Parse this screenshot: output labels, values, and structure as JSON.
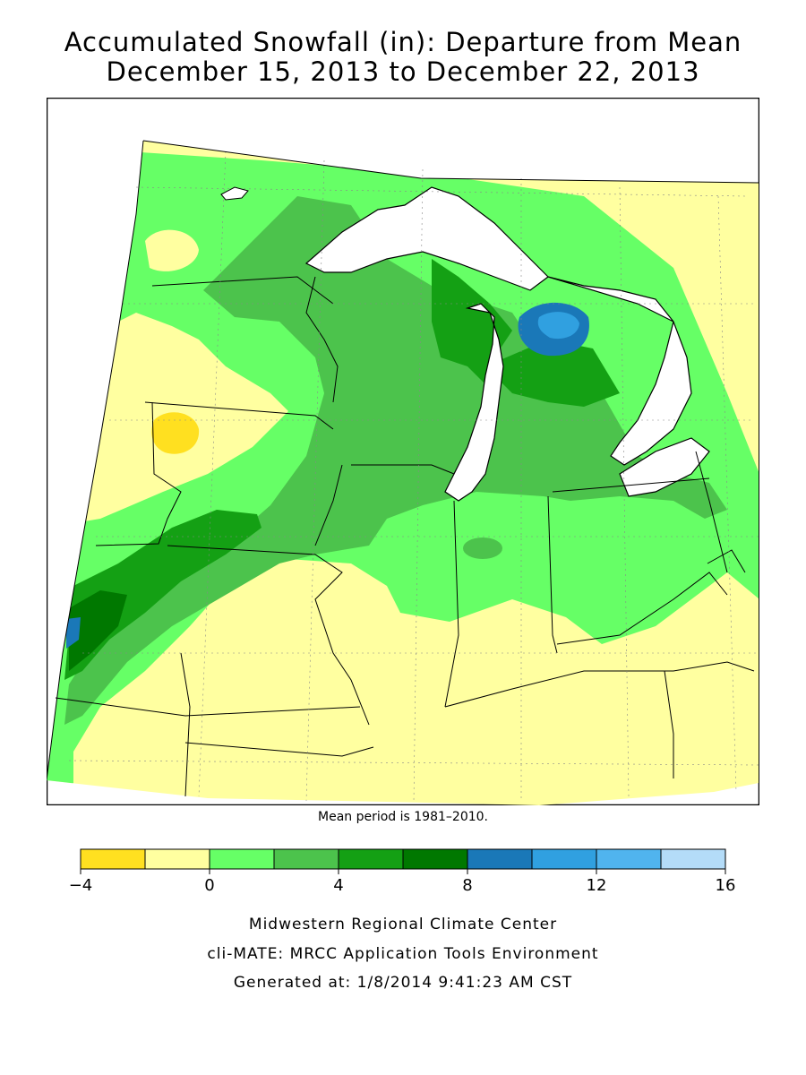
{
  "title": {
    "line1": "Accumulated Snowfall (in): Departure from Mean",
    "line2": "December 15, 2013 to December 22, 2013"
  },
  "mean_note": "Mean period is 1981–2010.",
  "legend": {
    "ticks": [
      "−4",
      "0",
      "4",
      "8",
      "12",
      "16"
    ],
    "bins": [
      {
        "color": "#ffe020"
      },
      {
        "color": "#ffffa0"
      },
      {
        "color": "#66ff66"
      },
      {
        "color": "#4cc34c"
      },
      {
        "color": "#14a014"
      },
      {
        "color": "#007800"
      },
      {
        "color": "#1a78b8"
      },
      {
        "color": "#30a0e0"
      },
      {
        "color": "#50b4ee"
      },
      {
        "color": "#b4dcf8"
      }
    ]
  },
  "credits": {
    "line1": "Midwestern Regional Climate Center",
    "line2": "cli-MATE: MRCC Application Tools Environment",
    "line3": "Generated at: 1/8/2014 9:41:23 AM CST"
  },
  "colors": {
    "below_minus2": "#ffe020",
    "minus2_to_0": "#ffffa0",
    "0_to_2": "#66ff66",
    "2_to_4": "#4cc34c",
    "4_to_6": "#14a014",
    "6_to_8": "#007800",
    "8_to_10": "#1a78b8",
    "10_to_12": "#30a0e0",
    "lakes": "#ffffff"
  }
}
